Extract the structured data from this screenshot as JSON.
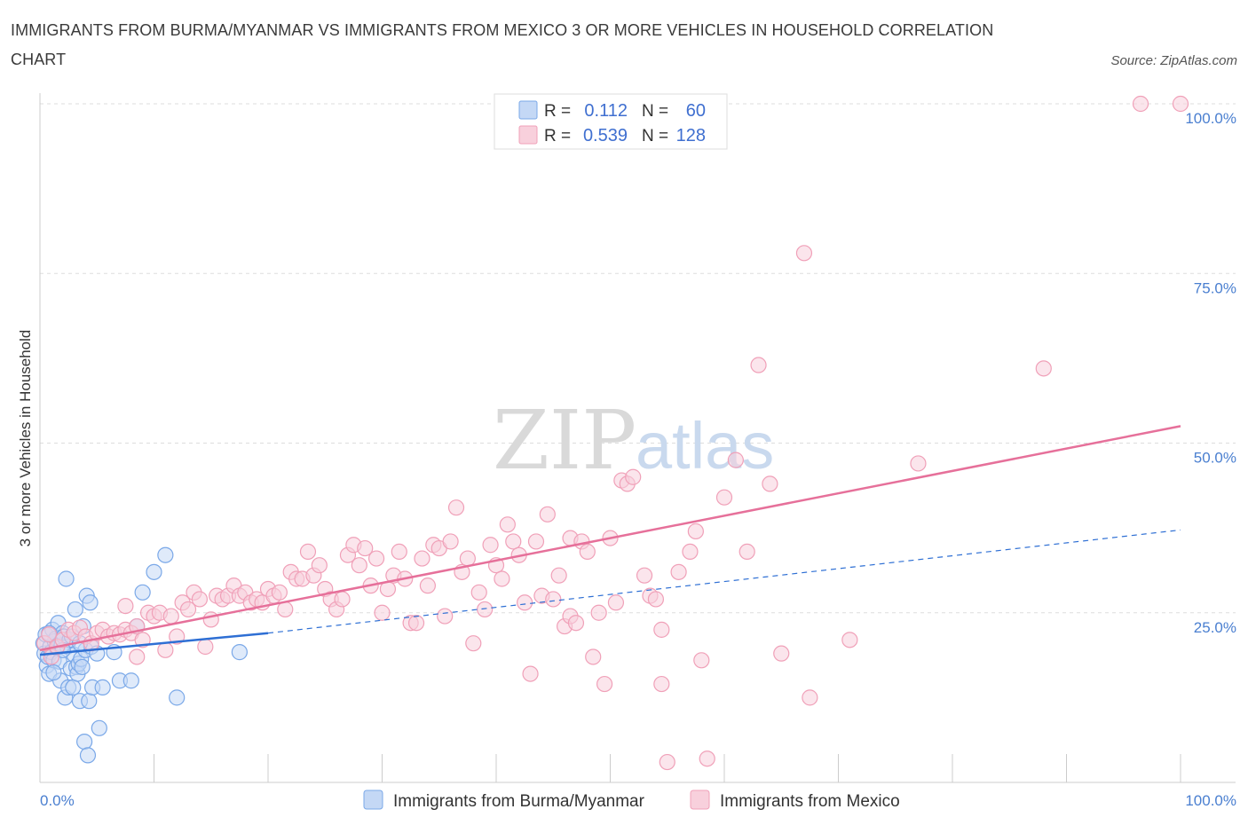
{
  "title": "IMMIGRANTS FROM BURMA/MYANMAR VS IMMIGRANTS FROM MEXICO 3 OR MORE VEHICLES IN HOUSEHOLD CORRELATION CHART",
  "source": "Source: ZipAtlas.com",
  "watermark": {
    "zip": "ZIP",
    "atlas": "atlas"
  },
  "colors": {
    "burma": "#7aa8e8",
    "burma_fill": "#c4d8f5",
    "burma_line": "#2e6fd4",
    "mexico": "#f0a0b8",
    "mexico_fill": "#f8d0dc",
    "mexico_line": "#e6709a",
    "tick": "#4a7fd0",
    "grid": "#dddddd"
  },
  "legend": {
    "rows": [
      {
        "r_label": "R =",
        "r_value": "0.112",
        "n_label": "N =",
        "n_value": "60"
      },
      {
        "r_label": "R =",
        "r_value": "0.539",
        "n_label": "N =",
        "n_value": "128"
      }
    ]
  },
  "bottom_legend": [
    "Immigrants from Burma/Myanmar",
    "Immigrants from Mexico"
  ],
  "chart_data": {
    "type": "scatter",
    "ylabel": "3 or more Vehicles in Household",
    "xlabel": "",
    "xlim": [
      0,
      100
    ],
    "ylim": [
      0,
      100
    ],
    "x_tick_labels": [
      "0.0%",
      "100.0%"
    ],
    "y_tick_labels": [
      "25.0%",
      "50.0%",
      "75.0%",
      "100.0%"
    ],
    "y_ticks": [
      25,
      50,
      75,
      100
    ],
    "grid": true,
    "legend_position": "top-center",
    "series": [
      {
        "name": "Immigrants from Burma/Myanmar",
        "R": 0.112,
        "N": 60,
        "trend_solid": [
          [
            0,
            18.8
          ],
          [
            20,
            22.0
          ]
        ],
        "trend_dashed": [
          [
            20,
            22.0
          ],
          [
            100,
            37.2
          ]
        ],
        "points": [
          [
            0.3,
            20.5
          ],
          [
            0.4,
            19.0
          ],
          [
            0.5,
            21.8
          ],
          [
            0.6,
            17.2
          ],
          [
            0.7,
            18.5
          ],
          [
            0.8,
            16.0
          ],
          [
            0.9,
            20.0
          ],
          [
            1.0,
            19.2
          ],
          [
            1.1,
            22.5
          ],
          [
            1.2,
            18.0
          ],
          [
            1.3,
            20.8
          ],
          [
            1.4,
            21.2
          ],
          [
            1.5,
            19.8
          ],
          [
            1.6,
            23.5
          ],
          [
            1.7,
            17.8
          ],
          [
            1.8,
            15.0
          ],
          [
            1.9,
            20.2
          ],
          [
            2.0,
            22.0
          ],
          [
            2.1,
            21.5
          ],
          [
            2.2,
            12.5
          ],
          [
            2.3,
            30.0
          ],
          [
            2.4,
            20.0
          ],
          [
            2.5,
            14.0
          ],
          [
            2.6,
            21.0
          ],
          [
            2.7,
            16.8
          ],
          [
            2.8,
            21.5
          ],
          [
            2.9,
            14.0
          ],
          [
            3.0,
            18.8
          ],
          [
            3.1,
            25.5
          ],
          [
            3.2,
            17.0
          ],
          [
            3.3,
            16.0
          ],
          [
            3.4,
            17.5
          ],
          [
            3.5,
            12.0
          ],
          [
            3.6,
            18.2
          ],
          [
            3.7,
            17.0
          ],
          [
            3.8,
            23.0
          ],
          [
            3.9,
            6.0
          ],
          [
            4.0,
            19.5
          ],
          [
            4.1,
            27.5
          ],
          [
            4.2,
            4.0
          ],
          [
            4.3,
            12.0
          ],
          [
            4.4,
            26.5
          ],
          [
            4.5,
            20.0
          ],
          [
            4.6,
            14.0
          ],
          [
            5.0,
            19.0
          ],
          [
            5.2,
            8.0
          ],
          [
            5.5,
            14.0
          ],
          [
            6.5,
            19.2
          ],
          [
            7.0,
            15.0
          ],
          [
            8.0,
            15.0
          ],
          [
            8.5,
            23.0
          ],
          [
            9.0,
            28.0
          ],
          [
            10.0,
            31.0
          ],
          [
            11.0,
            33.5
          ],
          [
            12.0,
            12.5
          ],
          [
            17.5,
            19.2
          ],
          [
            1.2,
            16.2
          ],
          [
            2.0,
            19.5
          ],
          [
            3.5,
            20.5
          ],
          [
            0.8,
            22.0
          ]
        ]
      },
      {
        "name": "Immigrants from Mexico",
        "R": 0.539,
        "N": 128,
        "trend_solid": [
          [
            0,
            19.5
          ],
          [
            100,
            52.5
          ]
        ],
        "points": [
          [
            0.4,
            20.5
          ],
          [
            0.8,
            21.8
          ],
          [
            1.0,
            18.5
          ],
          [
            1.5,
            20.0
          ],
          [
            2.0,
            21.0
          ],
          [
            2.5,
            22.5
          ],
          [
            3.0,
            22.0
          ],
          [
            3.5,
            22.8
          ],
          [
            4.0,
            21.5
          ],
          [
            4.5,
            20.5
          ],
          [
            5.0,
            22.0
          ],
          [
            5.5,
            22.5
          ],
          [
            6.0,
            21.5
          ],
          [
            6.5,
            22.0
          ],
          [
            7.0,
            21.8
          ],
          [
            7.5,
            22.5
          ],
          [
            7.5,
            26.0
          ],
          [
            8.0,
            22.0
          ],
          [
            8.5,
            23.0
          ],
          [
            8.5,
            18.5
          ],
          [
            9.0,
            21.0
          ],
          [
            9.5,
            25.0
          ],
          [
            10.0,
            24.5
          ],
          [
            10.5,
            25.0
          ],
          [
            11.0,
            19.5
          ],
          [
            11.5,
            24.5
          ],
          [
            12.0,
            21.5
          ],
          [
            12.5,
            26.5
          ],
          [
            13.0,
            25.5
          ],
          [
            13.5,
            28.0
          ],
          [
            14.0,
            27.0
          ],
          [
            14.5,
            20.0
          ],
          [
            15.0,
            24.0
          ],
          [
            15.5,
            27.5
          ],
          [
            16.0,
            27.0
          ],
          [
            16.5,
            27.5
          ],
          [
            17.0,
            29.0
          ],
          [
            17.5,
            27.5
          ],
          [
            18.0,
            28.0
          ],
          [
            18.5,
            26.5
          ],
          [
            19.0,
            27.0
          ],
          [
            19.5,
            26.5
          ],
          [
            20.0,
            28.5
          ],
          [
            20.5,
            27.5
          ],
          [
            21.0,
            28.0
          ],
          [
            21.5,
            25.5
          ],
          [
            22.0,
            31.0
          ],
          [
            22.5,
            30.0
          ],
          [
            23.0,
            30.0
          ],
          [
            23.5,
            34.0
          ],
          [
            24.0,
            30.5
          ],
          [
            24.5,
            32.0
          ],
          [
            25.0,
            28.5
          ],
          [
            25.5,
            27.0
          ],
          [
            26.0,
            25.5
          ],
          [
            26.5,
            27.0
          ],
          [
            27.0,
            33.5
          ],
          [
            27.5,
            35.0
          ],
          [
            28.0,
            32.0
          ],
          [
            28.5,
            34.5
          ],
          [
            29.0,
            29.0
          ],
          [
            29.5,
            33.0
          ],
          [
            30.0,
            25.0
          ],
          [
            30.5,
            28.5
          ],
          [
            31.0,
            30.5
          ],
          [
            31.5,
            34.0
          ],
          [
            32.0,
            30.0
          ],
          [
            32.5,
            23.5
          ],
          [
            33.0,
            23.5
          ],
          [
            33.5,
            33.0
          ],
          [
            34.0,
            29.0
          ],
          [
            34.5,
            35.0
          ],
          [
            35.0,
            34.5
          ],
          [
            35.5,
            24.5
          ],
          [
            36.0,
            35.5
          ],
          [
            36.5,
            40.5
          ],
          [
            37.0,
            31.0
          ],
          [
            37.5,
            33.0
          ],
          [
            38.0,
            20.5
          ],
          [
            38.5,
            28.0
          ],
          [
            39.0,
            25.5
          ],
          [
            39.5,
            35.0
          ],
          [
            40.0,
            32.0
          ],
          [
            40.5,
            30.0
          ],
          [
            41.0,
            38.0
          ],
          [
            41.5,
            35.5
          ],
          [
            42.0,
            33.5
          ],
          [
            42.5,
            26.5
          ],
          [
            43.0,
            16.0
          ],
          [
            43.5,
            35.5
          ],
          [
            44.0,
            27.5
          ],
          [
            44.5,
            39.5
          ],
          [
            45.0,
            27.0
          ],
          [
            45.5,
            30.5
          ],
          [
            46.0,
            23.0
          ],
          [
            46.5,
            24.5
          ],
          [
            46.5,
            36.0
          ],
          [
            47.0,
            23.5
          ],
          [
            47.5,
            35.5
          ],
          [
            48.0,
            34.0
          ],
          [
            48.5,
            18.5
          ],
          [
            49.0,
            25.0
          ],
          [
            49.5,
            14.5
          ],
          [
            50.0,
            36.0
          ],
          [
            50.5,
            26.5
          ],
          [
            51.0,
            44.5
          ],
          [
            51.5,
            44.0
          ],
          [
            52.0,
            45.0
          ],
          [
            53.0,
            30.5
          ],
          [
            53.5,
            27.5
          ],
          [
            54.0,
            27.0
          ],
          [
            54.5,
            22.5
          ],
          [
            54.5,
            14.5
          ],
          [
            55.0,
            3.0
          ],
          [
            56.0,
            31.0
          ],
          [
            57.0,
            34.0
          ],
          [
            57.5,
            37.0
          ],
          [
            58.0,
            18.0
          ],
          [
            58.5,
            3.5
          ],
          [
            60.0,
            42.0
          ],
          [
            61.0,
            47.5
          ],
          [
            62.0,
            34.0
          ],
          [
            63.0,
            61.5
          ],
          [
            64.0,
            44.0
          ],
          [
            65.0,
            19.0
          ],
          [
            67.0,
            78.0
          ],
          [
            67.5,
            12.5
          ],
          [
            71.0,
            21.0
          ],
          [
            77.0,
            47.0
          ],
          [
            88.0,
            61.0
          ],
          [
            96.5,
            100.0
          ],
          [
            100.0,
            100.0
          ]
        ]
      }
    ]
  }
}
